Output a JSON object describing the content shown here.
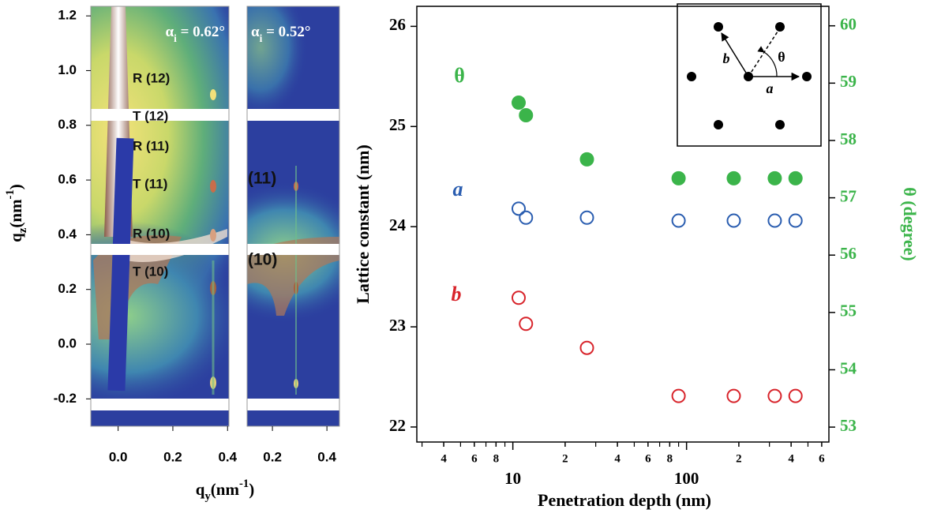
{
  "chart_data": [
    {
      "type": "image",
      "title": [
        "α",
        "i",
        " = 0.62°"
      ],
      "xlim": [
        -0.1,
        0.405
      ],
      "xticks": [
        {
          "value": 0,
          "label": "0.0"
        },
        0.2,
        0.4
      ],
      "ylim": [
        -0.3,
        1.235
      ],
      "yticks": [
        -0.2,
        {
          "value": 0,
          "label": "0.0"
        },
        0.2,
        0.4,
        0.6,
        0.8,
        {
          "value": 1,
          "label": "1.0"
        },
        1.2
      ],
      "xlabel": [
        "q",
        "y",
        "(nm",
        "-1",
        ")"
      ],
      "ylabel": [
        "q",
        "z",
        "(nm",
        "-1",
        ")"
      ],
      "annotations": [
        "R (12)",
        "T (12)",
        "R (11)",
        "T (11)",
        "R (10)",
        "T (10)"
      ]
    },
    {
      "type": "image",
      "title": [
        "α",
        "i",
        " = 0.52°"
      ],
      "xlim": [
        0.107,
        0.446
      ],
      "xticks": [
        0.2,
        0.4
      ],
      "ylim": [
        -0.3,
        1.235
      ],
      "annotations": [
        "(11)",
        "(10)"
      ]
    },
    {
      "type": "scatter",
      "xlabel": "Penetration depth (nm)",
      "ylabel": "Lattice constant (nm)",
      "y2label": "θ (degree)",
      "y2label_color": "#3bb44a",
      "log_x": true,
      "x": [
        10.8,
        11.9,
        26.7,
        90,
        187,
        322,
        424
      ],
      "xlim": [
        2.8,
        660
      ],
      "xticks": [
        4,
        6,
        8,
        10,
        {
          "value": 20,
          "label": "2"
        },
        {
          "value": 40,
          "label": "4"
        },
        {
          "value": 60,
          "label": "6"
        },
        {
          "value": 80,
          "label": "8"
        },
        100,
        {
          "value": 200,
          "label": "2"
        },
        {
          "value": 400,
          "label": "4"
        },
        {
          "value": 600,
          "label": "6"
        }
      ],
      "xminor_ticks": [
        3,
        5,
        7,
        9,
        30,
        50,
        70,
        90,
        300,
        500
      ],
      "ylim": [
        21.85,
        26.2
      ],
      "yticks": [
        22,
        23,
        24,
        25,
        26
      ],
      "y2lim": [
        52.74,
        60.34
      ],
      "y2ticks": [
        53,
        54,
        55,
        56,
        57,
        58,
        59,
        60
      ],
      "series": [
        {
          "name": "θ",
          "color": "#3bb44a",
          "marker": "filled",
          "axis": "y2",
          "values": [
            58.66,
            58.44,
            57.67,
            57.34,
            57.34,
            57.34,
            57.34
          ]
        },
        {
          "name": "a",
          "color": "#2a5db0",
          "marker": "open",
          "values": [
            24.18,
            24.09,
            24.09,
            24.06,
            24.06,
            24.06,
            24.06
          ]
        },
        {
          "name": "b",
          "color": "#d8242b",
          "marker": "open",
          "values": [
            23.29,
            23.03,
            22.79,
            22.31,
            22.31,
            22.31,
            22.31
          ]
        }
      ],
      "inset_labels": [
        "b",
        "θ",
        "a"
      ]
    }
  ]
}
